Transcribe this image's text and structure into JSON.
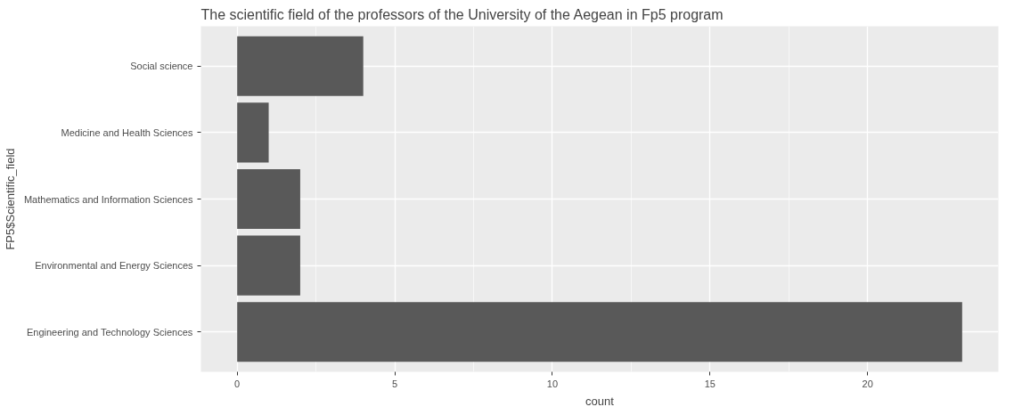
{
  "chart_data": {
    "type": "bar",
    "orientation": "horizontal",
    "title": "The scientific field of the professors of the University of the Aegean in Fp5 program",
    "xlabel": "count",
    "ylabel": "FP5$Scientific_field",
    "categories": [
      "Social science",
      "Medicine and Health Sciences",
      "Mathematics and Information Sciences",
      "Environmental and Energy Sciences",
      "Engineering and Technology Sciences"
    ],
    "values": [
      4,
      1,
      2,
      2,
      23
    ],
    "color": "#595959",
    "xlim": [
      -1.15,
      24.15
    ],
    "xticks": [
      0,
      5,
      10,
      15,
      20
    ],
    "grid": true
  }
}
